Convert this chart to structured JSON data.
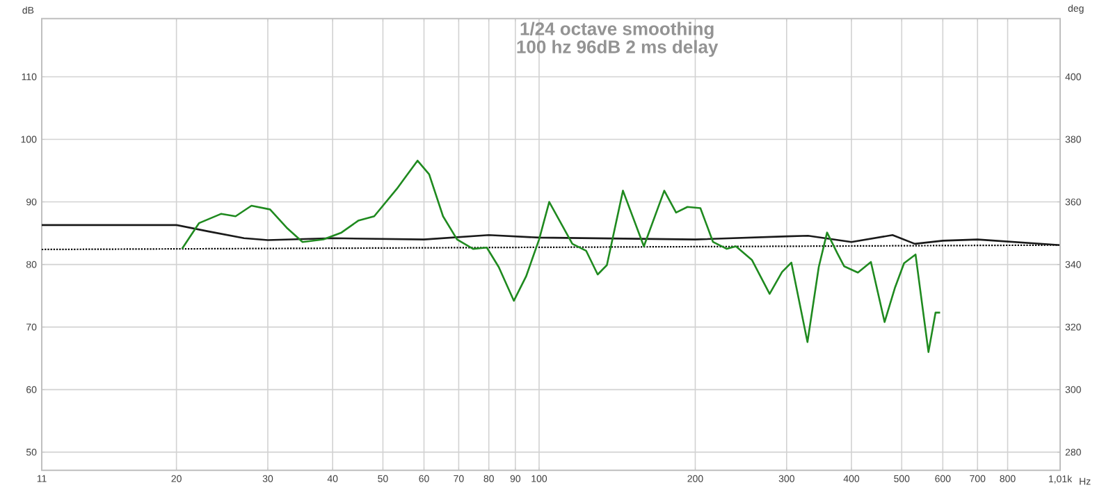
{
  "chart_data": {
    "type": "line",
    "title": "1/24 octave smoothing",
    "subtitle": "100 hz 96dB 2 ms delay",
    "xlabel": "Hz",
    "ylabel": "dB",
    "y2label": "deg",
    "log": "x",
    "grid": true,
    "marker": "none",
    "xlim": [
      11,
      1010
    ],
    "xticks": [
      11,
      20,
      30,
      40,
      50,
      60,
      70,
      80,
      90,
      100,
      200,
      300,
      400,
      500,
      600,
      700,
      800,
      {
        "value": 1010,
        "label": "1,01k"
      }
    ],
    "ylim": [
      47.1,
      119.3
    ],
    "yticks": [
      50,
      60,
      70,
      80,
      90,
      100,
      110
    ],
    "y2lim": [
      274.2,
      418.6
    ],
    "y2ticks": [
      280,
      300,
      320,
      340,
      360,
      380,
      400
    ],
    "series": [
      {
        "color": "#000000",
        "line_style": "dotted",
        "x": [
          11,
          1010
        ],
        "values": [
          82.4,
          83.1
        ]
      },
      {
        "color": "#1a1a1a",
        "line_style": "solid",
        "x": [
          11,
          20,
          23,
          27,
          30,
          40,
          60,
          80,
          100,
          200,
          300,
          330,
          400,
          480,
          530,
          600,
          700,
          1010
        ],
        "values": [
          86.3,
          86.3,
          85.3,
          84.2,
          83.9,
          84.2,
          84.0,
          84.7,
          84.3,
          84.0,
          84.5,
          84.6,
          83.6,
          84.7,
          83.3,
          83.8,
          84.0,
          83.1
        ]
      },
      {
        "color": "#1f8a1f",
        "line_style": "solid",
        "x": [
          20.5,
          22.1,
          24.4,
          26.0,
          27.9,
          30.3,
          32.6,
          35.0,
          38.4,
          41.6,
          44.8,
          48.1,
          53.2,
          58.3,
          61.4,
          65.3,
          69.5,
          74.6,
          79.3,
          83.6,
          89.4,
          94.4,
          100,
          104.6,
          115.9,
          123.2,
          129.7,
          135.1,
          145.1,
          159.2,
          174.3,
          183.7,
          193.2,
          204.6,
          216.4,
          230.0,
          239.6,
          257.3,
          278.2,
          294.0,
          306.4,
          329.1,
          346.0,
          359.0,
          375.7,
          387.4,
          411.6,
          436.1,
          463.4,
          484.8,
          505.2,
          531.6,
          563.0,
          580.9,
          592.9
        ],
        "values": [
          82.5,
          86.6,
          88.1,
          87.7,
          89.4,
          88.8,
          85.9,
          83.6,
          84.0,
          85.1,
          87.0,
          87.7,
          92.1,
          96.6,
          94.4,
          87.7,
          84.0,
          82.5,
          82.7,
          79.6,
          74.2,
          78.1,
          84.0,
          90.0,
          83.3,
          82.2,
          78.4,
          79.9,
          91.8,
          82.9,
          91.8,
          88.3,
          89.2,
          89.0,
          83.6,
          82.5,
          82.9,
          80.7,
          75.3,
          78.8,
          80.3,
          67.6,
          79.6,
          85.1,
          81.8,
          79.7,
          78.7,
          80.4,
          70.8,
          76.2,
          80.2,
          81.6,
          66.0,
          72.3,
          72.3
        ]
      }
    ]
  }
}
